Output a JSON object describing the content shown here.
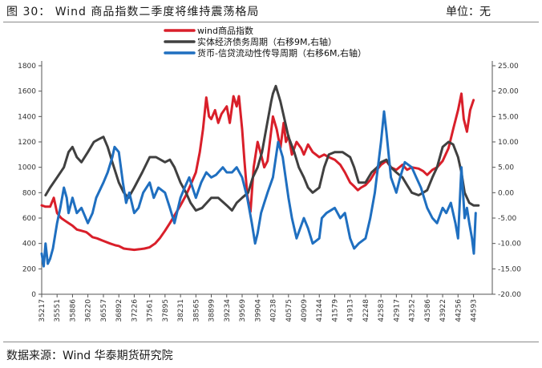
{
  "header": {
    "figure_title": "图 30： Wind 商品指数二季度将维持震荡格局",
    "unit": "单位：无"
  },
  "footer": {
    "source": "数据来源：Wind 华泰期货研究院"
  },
  "colors": {
    "wind": "#d91f2a",
    "debt": "#404040",
    "credit": "#1f6fc0"
  },
  "chart_data": {
    "type": "line",
    "title": "",
    "legend_placement": "top-center",
    "grid": false,
    "left_axis": {
      "range": [
        0,
        1800
      ],
      "ticks": [
        "0",
        "200",
        "400",
        "600",
        "800",
        "1000",
        "1200",
        "1400",
        "1600",
        "1800"
      ]
    },
    "right_axis": {
      "range": [
        -20,
        25
      ],
      "ticks": [
        "-20.00",
        "-15.00",
        "-10.00",
        "-5.00",
        "0.00",
        "5.00",
        "10.00",
        "15.00",
        "20.00",
        "25.00"
      ]
    },
    "x_axis": {
      "range": [
        35217,
        45000
      ],
      "ticks": [
        "35217",
        "35551",
        "35886",
        "36220",
        "36557",
        "36892",
        "37226",
        "37561",
        "37895",
        "38231",
        "38565",
        "38899",
        "39234",
        "39569",
        "39904",
        "40238",
        "40575",
        "40909",
        "41244",
        "41579",
        "41913",
        "42248",
        "42583",
        "42917",
        "43252",
        "43586",
        "43922",
        "44256",
        "44593"
      ]
    },
    "series": [
      {
        "name": "wind商品指数",
        "axis": "left",
        "points": [
          [
            35217,
            700
          ],
          [
            35300,
            690
          ],
          [
            35400,
            690
          ],
          [
            35480,
            760
          ],
          [
            35551,
            640
          ],
          [
            35640,
            600
          ],
          [
            35720,
            580
          ],
          [
            35800,
            560
          ],
          [
            35886,
            540
          ],
          [
            35980,
            510
          ],
          [
            36080,
            500
          ],
          [
            36180,
            490
          ],
          [
            36220,
            480
          ],
          [
            36320,
            450
          ],
          [
            36420,
            440
          ],
          [
            36557,
            420
          ],
          [
            36700,
            400
          ],
          [
            36820,
            385
          ],
          [
            36892,
            380
          ],
          [
            37000,
            360
          ],
          [
            37100,
            355
          ],
          [
            37226,
            350
          ],
          [
            37350,
            355
          ],
          [
            37450,
            360
          ],
          [
            37561,
            370
          ],
          [
            37680,
            400
          ],
          [
            37780,
            440
          ],
          [
            37895,
            500
          ],
          [
            38000,
            560
          ],
          [
            38100,
            620
          ],
          [
            38231,
            700
          ],
          [
            38350,
            780
          ],
          [
            38450,
            860
          ],
          [
            38565,
            960
          ],
          [
            38650,
            1120
          ],
          [
            38720,
            1300
          ],
          [
            38790,
            1550
          ],
          [
            38850,
            1400
          ],
          [
            38899,
            1380
          ],
          [
            38980,
            1450
          ],
          [
            39050,
            1350
          ],
          [
            39120,
            1420
          ],
          [
            39234,
            1480
          ],
          [
            39300,
            1350
          ],
          [
            39380,
            1560
          ],
          [
            39450,
            1480
          ],
          [
            39500,
            1560
          ],
          [
            39569,
            1300
          ],
          [
            39620,
            1050
          ],
          [
            39680,
            780
          ],
          [
            39750,
            650
          ],
          [
            39820,
            1000
          ],
          [
            39904,
            1200
          ],
          [
            39980,
            1100
          ],
          [
            40050,
            1000
          ],
          [
            40120,
            1050
          ],
          [
            40238,
            1400
          ],
          [
            40320,
            1300
          ],
          [
            40400,
            1150
          ],
          [
            40470,
            1350
          ],
          [
            40520,
            1200
          ],
          [
            40575,
            1250
          ],
          [
            40650,
            1100
          ],
          [
            40750,
            1200
          ],
          [
            40850,
            1150
          ],
          [
            40909,
            1100
          ],
          [
            41000,
            1180
          ],
          [
            41100,
            1120
          ],
          [
            41244,
            1080
          ],
          [
            41350,
            1100
          ],
          [
            41450,
            1080
          ],
          [
            41579,
            1060
          ],
          [
            41700,
            1020
          ],
          [
            41800,
            960
          ],
          [
            41913,
            880
          ],
          [
            42000,
            850
          ],
          [
            42080,
            820
          ],
          [
            42150,
            840
          ],
          [
            42248,
            860
          ],
          [
            42350,
            900
          ],
          [
            42450,
            960
          ],
          [
            42583,
            1020
          ],
          [
            42700,
            1050
          ],
          [
            42800,
            1000
          ],
          [
            42917,
            980
          ],
          [
            43050,
            1020
          ],
          [
            43150,
            980
          ],
          [
            43252,
            1000
          ],
          [
            43400,
            990
          ],
          [
            43500,
            970
          ],
          [
            43586,
            940
          ],
          [
            43700,
            980
          ],
          [
            43800,
            1000
          ],
          [
            43922,
            1050
          ],
          [
            44050,
            1150
          ],
          [
            44150,
            1300
          ],
          [
            44256,
            1450
          ],
          [
            44330,
            1580
          ],
          [
            44380,
            1380
          ],
          [
            44450,
            1280
          ],
          [
            44520,
            1450
          ],
          [
            44593,
            1530
          ]
        ]
      },
      {
        "name": "实体经济债务周期（右移9M,右轴）",
        "axis": "right",
        "points": [
          [
            35300,
            -0.5
          ],
          [
            35400,
            1
          ],
          [
            35551,
            3
          ],
          [
            35700,
            5
          ],
          [
            35800,
            8
          ],
          [
            35886,
            9
          ],
          [
            35980,
            7
          ],
          [
            36080,
            6
          ],
          [
            36220,
            8
          ],
          [
            36350,
            10
          ],
          [
            36450,
            10.5
          ],
          [
            36557,
            11
          ],
          [
            36650,
            9
          ],
          [
            36750,
            6
          ],
          [
            36892,
            2
          ],
          [
            37000,
            0
          ],
          [
            37100,
            -1
          ],
          [
            37226,
            1
          ],
          [
            37400,
            4
          ],
          [
            37561,
            7
          ],
          [
            37700,
            7
          ],
          [
            37895,
            6
          ],
          [
            38000,
            6.5
          ],
          [
            38100,
            5
          ],
          [
            38231,
            2
          ],
          [
            38350,
            0
          ],
          [
            38450,
            -2
          ],
          [
            38565,
            -3.5
          ],
          [
            38700,
            -3
          ],
          [
            38899,
            -1
          ],
          [
            39050,
            -1
          ],
          [
            39234,
            -2.5
          ],
          [
            39350,
            -3.5
          ],
          [
            39450,
            -2
          ],
          [
            39569,
            -1
          ],
          [
            39700,
            0
          ],
          [
            39800,
            3
          ],
          [
            39904,
            5
          ],
          [
            40000,
            8
          ],
          [
            40100,
            13
          ],
          [
            40200,
            18
          ],
          [
            40238,
            19.5
          ],
          [
            40300,
            21
          ],
          [
            40400,
            18
          ],
          [
            40500,
            14
          ],
          [
            40575,
            11
          ],
          [
            40700,
            8
          ],
          [
            40800,
            5
          ],
          [
            40909,
            3
          ],
          [
            41000,
            1
          ],
          [
            41100,
            0
          ],
          [
            41244,
            1
          ],
          [
            41350,
            5
          ],
          [
            41450,
            7.5
          ],
          [
            41579,
            8
          ],
          [
            41750,
            8
          ],
          [
            41913,
            7
          ],
          [
            42000,
            5
          ],
          [
            42100,
            2
          ],
          [
            42248,
            2
          ],
          [
            42380,
            4
          ],
          [
            42500,
            5
          ],
          [
            42583,
            6
          ],
          [
            42700,
            6.5
          ],
          [
            42800,
            5
          ],
          [
            42917,
            4
          ],
          [
            43050,
            3
          ],
          [
            43150,
            1.5
          ],
          [
            43252,
            0
          ],
          [
            43400,
            -0.5
          ],
          [
            43500,
            0
          ],
          [
            43586,
            0.5
          ],
          [
            43700,
            3
          ],
          [
            43800,
            5
          ],
          [
            43922,
            9
          ],
          [
            44050,
            10
          ],
          [
            44150,
            9.5
          ],
          [
            44256,
            7
          ],
          [
            44330,
            4
          ],
          [
            44400,
            0
          ],
          [
            44500,
            -2
          ],
          [
            44593,
            -2.5
          ],
          [
            44700,
            -2.5
          ]
        ]
      },
      {
        "name": "货币-信贷流动性传导周期（右移6M,右轴）",
        "axis": "right",
        "points": [
          [
            35217,
            -12
          ],
          [
            35260,
            -14.5
          ],
          [
            35300,
            -10
          ],
          [
            35350,
            -14
          ],
          [
            35400,
            -13
          ],
          [
            35460,
            -11
          ],
          [
            35551,
            -6
          ],
          [
            35620,
            -3
          ],
          [
            35700,
            1
          ],
          [
            35760,
            -1
          ],
          [
            35800,
            -4
          ],
          [
            35886,
            -1
          ],
          [
            35980,
            -4
          ],
          [
            36080,
            -3
          ],
          [
            36220,
            -6
          ],
          [
            36320,
            -4
          ],
          [
            36400,
            -1
          ],
          [
            36557,
            2
          ],
          [
            36650,
            4
          ],
          [
            36750,
            7
          ],
          [
            36800,
            9
          ],
          [
            36892,
            8
          ],
          [
            36980,
            2
          ],
          [
            37050,
            -2
          ],
          [
            37120,
            0
          ],
          [
            37226,
            -4
          ],
          [
            37320,
            -3
          ],
          [
            37420,
            0
          ],
          [
            37561,
            2
          ],
          [
            37650,
            -1
          ],
          [
            37750,
            1
          ],
          [
            37895,
            0
          ],
          [
            38000,
            -3
          ],
          [
            38100,
            -6
          ],
          [
            38231,
            -1
          ],
          [
            38320,
            1
          ],
          [
            38420,
            3
          ],
          [
            38565,
            -1
          ],
          [
            38680,
            2
          ],
          [
            38790,
            4
          ],
          [
            38899,
            3
          ],
          [
            39000,
            3.5
          ],
          [
            39150,
            5
          ],
          [
            39234,
            4
          ],
          [
            39350,
            4
          ],
          [
            39450,
            5
          ],
          [
            39569,
            3
          ],
          [
            39680,
            -1
          ],
          [
            39780,
            -6
          ],
          [
            39850,
            -10
          ],
          [
            39904,
            -8
          ],
          [
            39980,
            -4
          ],
          [
            40050,
            -2
          ],
          [
            40120,
            0
          ],
          [
            40238,
            3
          ],
          [
            40350,
            10
          ],
          [
            40450,
            7
          ],
          [
            40575,
            -1
          ],
          [
            40650,
            -5
          ],
          [
            40750,
            -9
          ],
          [
            40909,
            -5
          ],
          [
            41000,
            -7
          ],
          [
            41100,
            -10
          ],
          [
            41244,
            -9
          ],
          [
            41300,
            -5
          ],
          [
            41400,
            -4
          ],
          [
            41579,
            -3
          ],
          [
            41700,
            -5
          ],
          [
            41800,
            -4
          ],
          [
            41913,
            -9
          ],
          [
            42000,
            -11
          ],
          [
            42100,
            -10
          ],
          [
            42248,
            -9
          ],
          [
            42350,
            -5
          ],
          [
            42450,
            0
          ],
          [
            42583,
            10
          ],
          [
            42650,
            16
          ],
          [
            42700,
            12
          ],
          [
            42800,
            3
          ],
          [
            42917,
            0
          ],
          [
            43000,
            3
          ],
          [
            43100,
            6
          ],
          [
            43252,
            5
          ],
          [
            43350,
            3
          ],
          [
            43450,
            1
          ],
          [
            43586,
            -3
          ],
          [
            43700,
            -5
          ],
          [
            43800,
            -6
          ],
          [
            43922,
            -3
          ],
          [
            44000,
            -4
          ],
          [
            44100,
            -2
          ],
          [
            44200,
            -6
          ],
          [
            44256,
            -9
          ],
          [
            44330,
            5
          ],
          [
            44400,
            -5
          ],
          [
            44450,
            -3
          ],
          [
            44500,
            -6
          ],
          [
            44560,
            -9
          ],
          [
            44600,
            -12
          ],
          [
            44640,
            -4
          ]
        ]
      }
    ]
  }
}
